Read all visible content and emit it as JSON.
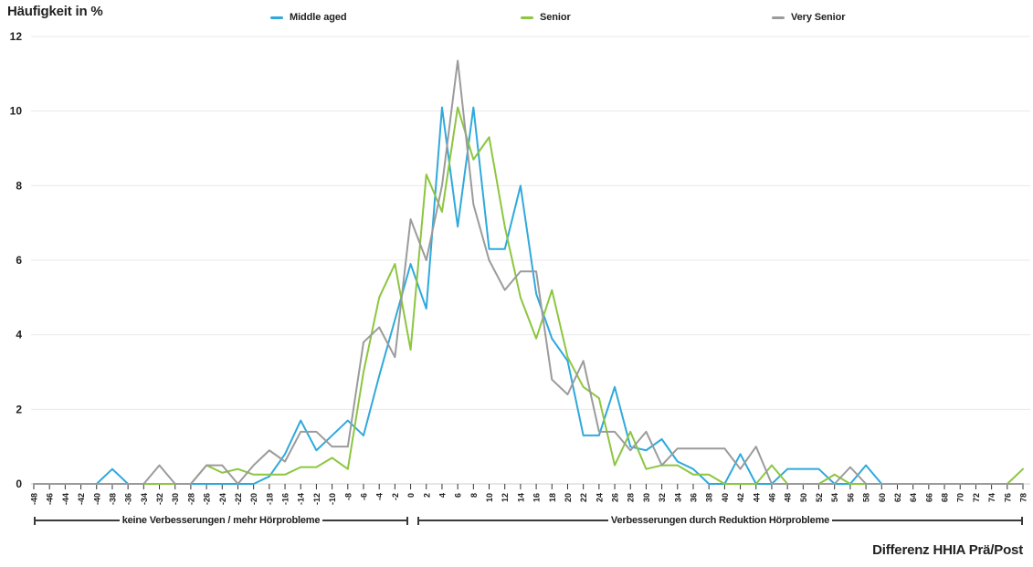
{
  "title": "Häufigkeit in %",
  "x_axis_title": "Differenz HHIA Prä/Post",
  "annotations": {
    "left_bracket": "keine Verbesserungen / mehr Hörprobleme",
    "right_bracket": "Verbesserungen durch Reduktion Hörprobleme"
  },
  "colors": {
    "middle_aged": "#2FA9DC",
    "senior": "#8CC63F",
    "very_senior": "#9B9B9B",
    "grid": "#E9E9E9",
    "axis_baseline": "#CFCFCF",
    "tick": "#333333",
    "text": "#212121"
  },
  "chart_data": {
    "type": "line",
    "title": "Häufigkeit in %",
    "xlabel": "Differenz HHIA Prä/Post",
    "ylabel": "Häufigkeit in %",
    "ylim": [
      0,
      12
    ],
    "yticks": [
      0,
      2,
      4,
      6,
      8,
      10,
      12
    ],
    "grid": true,
    "legend_position": "top",
    "x": [
      -48,
      -46,
      -44,
      -42,
      -40,
      -38,
      -36,
      -34,
      -32,
      -30,
      -28,
      -26,
      -24,
      -22,
      -20,
      -18,
      -16,
      -14,
      -12,
      -10,
      -8,
      -6,
      -4,
      -2,
      0,
      2,
      4,
      6,
      8,
      10,
      12,
      14,
      16,
      18,
      20,
      22,
      24,
      26,
      28,
      30,
      32,
      34,
      36,
      38,
      40,
      42,
      44,
      46,
      48,
      50,
      52,
      54,
      56,
      58,
      60,
      62,
      64,
      66,
      68,
      70,
      72,
      74,
      76,
      78
    ],
    "series": [
      {
        "name": "Middle aged",
        "color": "#2FA9DC",
        "values": [
          0,
          0,
          0,
          0,
          0,
          0.4,
          0,
          0,
          0,
          0,
          0,
          0,
          0,
          0,
          0,
          0.2,
          0.8,
          1.7,
          0.9,
          1.3,
          1.7,
          1.3,
          2.9,
          4.4,
          5.9,
          4.7,
          10.1,
          6.9,
          10.1,
          6.3,
          6.3,
          8.0,
          5.1,
          3.9,
          3.3,
          1.3,
          1.3,
          2.6,
          1.0,
          0.9,
          1.2,
          0.6,
          0.4,
          0,
          0,
          0.8,
          0,
          0,
          0.4,
          0.4,
          0.4,
          0,
          0,
          0.5,
          0,
          0,
          0,
          0,
          0,
          0,
          0,
          0,
          0,
          0
        ]
      },
      {
        "name": "Senior",
        "color": "#8CC63F",
        "values": [
          0,
          0,
          0,
          0,
          0,
          0,
          0,
          0,
          0,
          0,
          0,
          0.5,
          0.3,
          0.4,
          0.25,
          0.25,
          0.25,
          0.45,
          0.45,
          0.7,
          0.4,
          3.0,
          5.0,
          5.9,
          3.6,
          8.3,
          7.3,
          10.1,
          8.7,
          9.3,
          6.9,
          5.0,
          3.9,
          5.2,
          3.4,
          2.6,
          2.3,
          0.5,
          1.4,
          0.4,
          0.5,
          0.5,
          0.25,
          0.25,
          0,
          0,
          0,
          0.5,
          0,
          0,
          0,
          0.25,
          0,
          0,
          0,
          0,
          0,
          0,
          0,
          0,
          0,
          0,
          0,
          0.4
        ]
      },
      {
        "name": "Very Senior",
        "color": "#9B9B9B",
        "values": [
          0,
          0,
          0,
          0,
          0,
          0,
          0,
          0,
          0.5,
          0,
          0,
          0.5,
          0.5,
          0,
          0.5,
          0.9,
          0.6,
          1.4,
          1.4,
          1.0,
          1.0,
          3.8,
          4.2,
          3.4,
          7.1,
          6.0,
          8.0,
          11.35,
          7.5,
          6.0,
          5.2,
          5.7,
          5.7,
          2.8,
          2.4,
          3.3,
          1.4,
          1.4,
          0.9,
          1.4,
          0.5,
          0.95,
          0.95,
          0.95,
          0.95,
          0.4,
          1.0,
          0,
          0,
          0,
          0,
          0,
          0.45,
          0,
          0,
          0,
          0,
          0,
          0,
          0,
          0,
          0,
          0,
          0
        ]
      }
    ]
  }
}
